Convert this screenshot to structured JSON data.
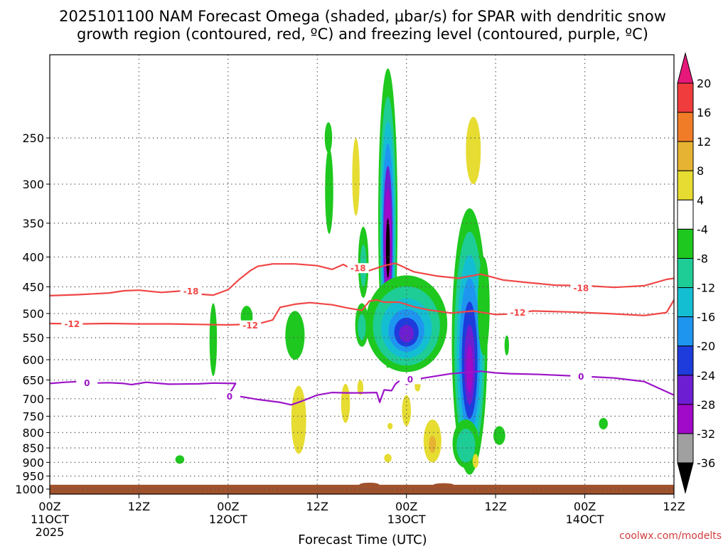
{
  "chart_data": {
    "type": "heatmap",
    "title_line1": "2025101100 NAM Forecast Omega (shaded, μbar/s) for SPAR with dendritic snow",
    "title_line2": "growth region (contoured, red, ºC) and freezing level (contoured, purple, ºC)",
    "xlabel": "Forecast Time (UTC)",
    "credit": "coolwx.com/modelts",
    "x_range_hours": [
      0,
      84
    ],
    "y_range_mb": [
      1020,
      180
    ],
    "y_ticks": [
      {
        "label": "250",
        "p": 250
      },
      {
        "label": "300",
        "p": 300
      },
      {
        "label": "350",
        "p": 350
      },
      {
        "label": "400",
        "p": 400
      },
      {
        "label": "450",
        "p": 450
      },
      {
        "label": "500",
        "p": 500
      },
      {
        "label": "550",
        "p": 550
      },
      {
        "label": "600",
        "p": 600
      },
      {
        "label": "650",
        "p": 650
      },
      {
        "label": "700",
        "p": 700
      },
      {
        "label": "750",
        "p": 750
      },
      {
        "label": "800",
        "p": 800
      },
      {
        "label": "850",
        "p": 850
      },
      {
        "label": "900",
        "p": 900
      },
      {
        "label": "950",
        "p": 950
      },
      {
        "label": "1000",
        "p": 1000
      }
    ],
    "x_ticks": [
      {
        "h": 0,
        "line1": "00Z",
        "line2": "11OCT",
        "line3": "2025"
      },
      {
        "h": 12,
        "line1": "12Z",
        "line2": "",
        "line3": ""
      },
      {
        "h": 24,
        "line1": "00Z",
        "line2": "12OCT",
        "line3": ""
      },
      {
        "h": 36,
        "line1": "12Z",
        "line2": "",
        "line3": ""
      },
      {
        "h": 48,
        "line1": "00Z",
        "line2": "13OCT",
        "line3": ""
      },
      {
        "h": 60,
        "line1": "12Z",
        "line2": "",
        "line3": ""
      },
      {
        "h": 72,
        "line1": "00Z",
        "line2": "14OCT",
        "line3": ""
      },
      {
        "h": 84,
        "line1": "12Z",
        "line2": "",
        "line3": ""
      }
    ],
    "colorbar": {
      "labels": [
        "20",
        "16",
        "12",
        "8",
        "4",
        "-4",
        "-8",
        "-12",
        "-16",
        "-20",
        "-24",
        "-28",
        "-32",
        "-36"
      ],
      "bins": [
        {
          "lo": 20,
          "hi": 24,
          "color": "#e6187a"
        },
        {
          "lo": 16,
          "hi": 20,
          "color": "#f03c3c"
        },
        {
          "lo": 12,
          "hi": 16,
          "color": "#f07c28"
        },
        {
          "lo": 8,
          "hi": 12,
          "color": "#e6b432"
        },
        {
          "lo": 4,
          "hi": 8,
          "color": "#e6dc32"
        },
        {
          "lo": -4,
          "hi": 4,
          "color": "#ffffff"
        },
        {
          "lo": -8,
          "hi": -4,
          "color": "#1ec81e"
        },
        {
          "lo": -12,
          "hi": -8,
          "color": "#1ecc96"
        },
        {
          "lo": -16,
          "hi": -12,
          "color": "#14bed2"
        },
        {
          "lo": -20,
          "hi": -16,
          "color": "#1e96f0"
        },
        {
          "lo": -24,
          "hi": -20,
          "color": "#1e3cdc"
        },
        {
          "lo": -28,
          "hi": -24,
          "color": "#6e1ed2"
        },
        {
          "lo": -32,
          "hi": -28,
          "color": "#a00ac8"
        },
        {
          "lo": -36,
          "hi": -32,
          "color": "#a0a0a0"
        },
        {
          "lo": -40,
          "hi": -36,
          "color": "#000000"
        }
      ]
    },
    "omega_features": [
      {
        "h": 45.5,
        "pBottom": 620,
        "pTop": 190,
        "hw": 1.3,
        "bands": [
          {
            "value": -6,
            "scale": 1.0
          },
          {
            "value": -10,
            "scale": 0.85
          },
          {
            "value": -14,
            "scale": 0.72
          },
          {
            "value": -18,
            "scale": 0.6
          },
          {
            "value": -26,
            "scale": 0.48
          },
          {
            "value": -30,
            "scale": 0.36
          },
          {
            "value": -38,
            "scale": 0.2
          }
        ]
      },
      {
        "h": 48,
        "pBottom": 630,
        "pTop": 430,
        "hw": 5.5,
        "bands": [
          {
            "value": -6,
            "scale": 1.0
          },
          {
            "value": -10,
            "scale": 0.82
          },
          {
            "value": -14,
            "scale": 0.62
          },
          {
            "value": -18,
            "scale": 0.44
          },
          {
            "value": -22,
            "scale": 0.3
          },
          {
            "value": -26,
            "scale": 0.18
          }
        ]
      },
      {
        "h": 42,
        "pBottom": 570,
        "pTop": 480,
        "hw": 0.9,
        "bands": [
          {
            "value": -6,
            "scale": 1.0
          },
          {
            "value": -10,
            "scale": 0.6
          }
        ]
      },
      {
        "h": 42.2,
        "pBottom": 470,
        "pTop": 355,
        "hw": 0.7,
        "bands": [
          {
            "value": -6,
            "scale": 1.0
          },
          {
            "value": -10,
            "scale": 0.6
          }
        ]
      },
      {
        "h": 56.5,
        "pBottom": 945,
        "pTop": 330,
        "hw": 2.4,
        "bands": [
          {
            "value": -6,
            "scale": 1.0
          },
          {
            "value": -10,
            "scale": 0.86
          },
          {
            "value": -14,
            "scale": 0.72
          },
          {
            "value": -18,
            "scale": 0.58
          },
          {
            "value": -22,
            "scale": 0.44
          },
          {
            "value": -26,
            "scale": 0.3
          },
          {
            "value": -30,
            "scale": 0.18
          }
        ]
      },
      {
        "h": 56,
        "pBottom": 920,
        "pTop": 760,
        "hw": 1.8,
        "bands": [
          {
            "value": -6,
            "scale": 1.0
          },
          {
            "value": -10,
            "scale": 0.7
          }
        ]
      },
      {
        "h": 58.4,
        "pBottom": 590,
        "pTop": 400,
        "hw": 0.8,
        "bands": [
          {
            "value": -6,
            "scale": 1.0
          }
        ]
      },
      {
        "h": 37.5,
        "pBottom": 265,
        "pTop": 235,
        "hw": 0.5,
        "bands": [
          {
            "value": -6,
            "scale": 1.0
          }
        ]
      },
      {
        "h": 37.6,
        "pBottom": 365,
        "pTop": 260,
        "hw": 0.55,
        "bands": [
          {
            "value": -6,
            "scale": 1.0
          }
        ]
      },
      {
        "h": 33,
        "pBottom": 600,
        "pTop": 495,
        "hw": 1.3,
        "bands": [
          {
            "value": -6,
            "scale": 1.0
          }
        ]
      },
      {
        "h": 22,
        "pBottom": 640,
        "pTop": 480,
        "hw": 0.5,
        "bands": [
          {
            "value": -6,
            "scale": 1.0
          }
        ]
      },
      {
        "h": 26.5,
        "pBottom": 530,
        "pTop": 485,
        "hw": 0.8,
        "bands": [
          {
            "value": -6,
            "scale": 1.0
          }
        ]
      },
      {
        "h": 17.5,
        "pBottom": 905,
        "pTop": 875,
        "hw": 0.6,
        "bands": [
          {
            "value": -6,
            "scale": 1.0
          }
        ]
      },
      {
        "h": 60.5,
        "pBottom": 840,
        "pTop": 780,
        "hw": 0.8,
        "bands": [
          {
            "value": -6,
            "scale": 1.0
          }
        ]
      },
      {
        "h": 61.5,
        "pBottom": 590,
        "pTop": 545,
        "hw": 0.3,
        "bands": [
          {
            "value": -6,
            "scale": 1.0
          }
        ]
      },
      {
        "h": 74.5,
        "pBottom": 790,
        "pTop": 755,
        "hw": 0.6,
        "bands": [
          {
            "value": -6,
            "scale": 1.0
          }
        ]
      },
      {
        "h": 57,
        "pBottom": 300,
        "pTop": 230,
        "hw": 1.0,
        "bands": [
          {
            "value": 5,
            "scale": 1.0
          }
        ]
      },
      {
        "h": 41.2,
        "pBottom": 340,
        "pTop": 250,
        "hw": 0.5,
        "bands": [
          {
            "value": 5,
            "scale": 1.0
          }
        ]
      },
      {
        "h": 33.5,
        "pBottom": 870,
        "pTop": 665,
        "hw": 1.0,
        "bands": [
          {
            "value": 5,
            "scale": 1.0
          }
        ]
      },
      {
        "h": 39.8,
        "pBottom": 770,
        "pTop": 660,
        "hw": 0.6,
        "bands": [
          {
            "value": 5,
            "scale": 1.0
          }
        ]
      },
      {
        "h": 51.5,
        "pBottom": 900,
        "pTop": 760,
        "hw": 1.2,
        "bands": [
          {
            "value": 5,
            "scale": 1.0
          },
          {
            "value": 10,
            "scale": 0.4
          }
        ]
      },
      {
        "h": 48,
        "pBottom": 780,
        "pTop": 690,
        "hw": 0.6,
        "bands": [
          {
            "value": 5,
            "scale": 1.0
          }
        ]
      },
      {
        "h": 45.5,
        "pBottom": 900,
        "pTop": 870,
        "hw": 0.5,
        "bands": [
          {
            "value": 5,
            "scale": 1.0
          }
        ]
      },
      {
        "h": 49.5,
        "pBottom": 680,
        "pTop": 650,
        "hw": 0.4,
        "bands": [
          {
            "value": 5,
            "scale": 1.0
          }
        ]
      },
      {
        "h": 57.3,
        "pBottom": 920,
        "pTop": 870,
        "hw": 0.4,
        "bands": [
          {
            "value": 5,
            "scale": 1.0
          }
        ]
      },
      {
        "h": 41.8,
        "pBottom": 690,
        "pTop": 650,
        "hw": 0.4,
        "bands": [
          {
            "value": 5,
            "scale": 1.0
          }
        ]
      },
      {
        "h": 45.8,
        "pBottom": 790,
        "pTop": 770,
        "hw": 0.35,
        "bands": [
          {
            "value": 5,
            "scale": 1.0
          }
        ]
      }
    ],
    "contours": [
      {
        "name": "isotherm-minus-18",
        "value": -18,
        "label": "-18",
        "color": "#f04646",
        "points": [
          [
            0,
            466
          ],
          [
            4,
            464
          ],
          [
            8,
            461
          ],
          [
            10,
            457
          ],
          [
            12,
            456
          ],
          [
            15,
            460
          ],
          [
            18,
            457
          ],
          [
            20,
            463
          ],
          [
            22,
            465
          ],
          [
            24,
            455
          ],
          [
            25.5,
            437
          ],
          [
            27,
            422
          ],
          [
            28,
            415
          ],
          [
            30,
            411
          ],
          [
            33,
            411
          ],
          [
            36,
            414
          ],
          [
            38,
            420
          ],
          [
            39.5,
            412
          ],
          [
            41,
            422
          ],
          [
            43,
            422
          ],
          [
            45,
            414
          ],
          [
            46.5,
            410
          ],
          [
            49,
            424
          ],
          [
            52,
            431
          ],
          [
            55,
            435
          ],
          [
            58,
            428
          ],
          [
            61,
            438
          ],
          [
            64,
            442
          ],
          [
            68,
            447
          ],
          [
            72,
            448
          ],
          [
            76,
            451
          ],
          [
            80,
            448
          ],
          [
            83,
            437
          ],
          [
            84,
            435
          ]
        ],
        "labels": [
          [
            19,
            458
          ],
          [
            41.5,
            418
          ],
          [
            71.5,
            452
          ]
        ]
      },
      {
        "name": "isotherm-minus-12",
        "value": -12,
        "label": "-12",
        "color": "#f04646",
        "points": [
          [
            0,
            520
          ],
          [
            4,
            521
          ],
          [
            8,
            520
          ],
          [
            12,
            521
          ],
          [
            16,
            521
          ],
          [
            20,
            522
          ],
          [
            24,
            523
          ],
          [
            28,
            521
          ],
          [
            30,
            513
          ],
          [
            31,
            488
          ],
          [
            33,
            482
          ],
          [
            35,
            479
          ],
          [
            38,
            483
          ],
          [
            40,
            489
          ],
          [
            42,
            494
          ],
          [
            43,
            476
          ],
          [
            44,
            474
          ],
          [
            45,
            478
          ],
          [
            47,
            478
          ],
          [
            49,
            487
          ],
          [
            51,
            493
          ],
          [
            54,
            499
          ],
          [
            57,
            495
          ],
          [
            60,
            502
          ],
          [
            62,
            501
          ],
          [
            65,
            495
          ],
          [
            70,
            497
          ],
          [
            75,
            500
          ],
          [
            80,
            504
          ],
          [
            83,
            498
          ],
          [
            84,
            474
          ]
        ],
        "labels": [
          [
            3,
            521
          ],
          [
            27,
            524
          ],
          [
            63,
            498
          ]
        ]
      },
      {
        "name": "freezing-level-0",
        "value": 0,
        "label": "0",
        "color": "#9c14c8",
        "points": [
          [
            0,
            659
          ],
          [
            2,
            656
          ],
          [
            4,
            654
          ],
          [
            6,
            658
          ],
          [
            8,
            657
          ],
          [
            10,
            659
          ],
          [
            11,
            662
          ],
          [
            13,
            656
          ],
          [
            16,
            661
          ],
          [
            20,
            660
          ],
          [
            22,
            658
          ],
          [
            25,
            659
          ],
          [
            24.5,
            676
          ],
          [
            24,
            690
          ],
          [
            26,
            695
          ],
          [
            28,
            702
          ],
          [
            31,
            710
          ],
          [
            32.5,
            717
          ],
          [
            34,
            706
          ],
          [
            36,
            690
          ],
          [
            38,
            683
          ],
          [
            40,
            684
          ],
          [
            42,
            684
          ],
          [
            44,
            683
          ],
          [
            44.4,
            710
          ],
          [
            45,
            676
          ],
          [
            46,
            678
          ],
          [
            46.5,
            661
          ],
          [
            47,
            653
          ],
          [
            48,
            661
          ],
          [
            48.5,
            658
          ],
          [
            50,
            646
          ],
          [
            52,
            640
          ],
          [
            54,
            634
          ],
          [
            58,
            628
          ],
          [
            60,
            632
          ],
          [
            62,
            634
          ],
          [
            66,
            636
          ],
          [
            72,
            641
          ],
          [
            76,
            645
          ],
          [
            80,
            654
          ],
          [
            84,
            690
          ]
        ],
        "labels": [
          [
            5,
            657
          ],
          [
            24.2,
            693
          ],
          [
            48.5,
            648
          ],
          [
            71.5,
            641
          ]
        ]
      }
    ],
    "terrain": {
      "color": "#a0522d",
      "p_top": 983,
      "bumps": [
        [
          43,
          975
        ],
        [
          53,
          977
        ]
      ]
    }
  }
}
